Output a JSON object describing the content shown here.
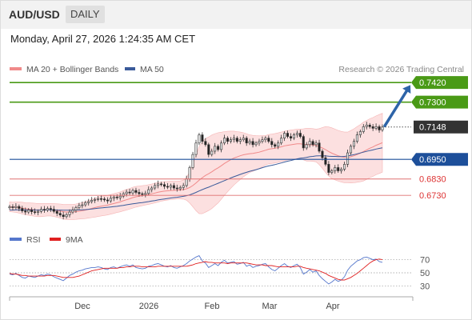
{
  "header": {
    "symbol": "AUD/USD",
    "timeframe": "DAILY"
  },
  "date_text": "Monday, April 27, 2026 1:24:35 AM CET",
  "legend": {
    "ma20": {
      "label": "MA 20 + Bollinger Bands",
      "color": "#f08a8a"
    },
    "ma50": {
      "label": "MA 50",
      "color": "#3a5a9a"
    },
    "copyright": "Research © 2026 Trading Central"
  },
  "rsi_legend": {
    "rsi": {
      "label": "RSI",
      "color": "#5577cc"
    },
    "ma9": {
      "label": "9MA",
      "color": "#e02020"
    }
  },
  "x_ticks": [
    "Dec",
    "2026",
    "Feb",
    "Mar",
    "Apr"
  ],
  "colors": {
    "resistance": "#4a9a16",
    "support": "#1d4f9a",
    "support_weak": "#e07070",
    "current": "#333333",
    "candle_up": "#e8e8e8",
    "candle_down": "#222222",
    "band_fill": "#fbd6d6",
    "arrow": "#2e64a8"
  },
  "chart_data": [
    {
      "type": "candlestick",
      "y_range": [
        0.6545,
        0.7455
      ],
      "levels": [
        {
          "label": "0.7420",
          "value": 0.742,
          "kind": "resistance"
        },
        {
          "label": "0.7300",
          "value": 0.73,
          "kind": "resistance"
        },
        {
          "label": "0.7148",
          "value": 0.7148,
          "kind": "current"
        },
        {
          "label": "0.6950",
          "value": 0.695,
          "kind": "support"
        },
        {
          "label": "0.6830",
          "value": 0.683,
          "kind": "support_weak"
        },
        {
          "label": "0.6730",
          "value": 0.673,
          "kind": "support_weak"
        }
      ],
      "arrow": {
        "from": 0.7155,
        "to": 0.7405
      },
      "close": [
        0.666,
        0.6655,
        0.6662,
        0.665,
        0.6635,
        0.6628,
        0.664,
        0.663,
        0.6625,
        0.6632,
        0.6645,
        0.664,
        0.665,
        0.6645,
        0.6632,
        0.662,
        0.661,
        0.66,
        0.6612,
        0.6628,
        0.664,
        0.6655,
        0.6668,
        0.6672,
        0.6685,
        0.6692,
        0.67,
        0.6705,
        0.671,
        0.6708,
        0.6702,
        0.6696,
        0.6712,
        0.672,
        0.6715,
        0.6725,
        0.674,
        0.675,
        0.6745,
        0.676,
        0.6748,
        0.674,
        0.6735,
        0.6742,
        0.6765,
        0.6775,
        0.679,
        0.68,
        0.6796,
        0.6785,
        0.678,
        0.679,
        0.6775,
        0.677,
        0.6778,
        0.679,
        0.683,
        0.69,
        0.698,
        0.705,
        0.71,
        0.706,
        0.704,
        0.698,
        0.7,
        0.703,
        0.701,
        0.705,
        0.708,
        0.706,
        0.707,
        0.708,
        0.706,
        0.707,
        0.708,
        0.705,
        0.706,
        0.704,
        0.705,
        0.706,
        0.707,
        0.708,
        0.706,
        0.704,
        0.703,
        0.705,
        0.708,
        0.711,
        0.709,
        0.708,
        0.71,
        0.711,
        0.709,
        0.702,
        0.704,
        0.706,
        0.704,
        0.705,
        0.7,
        0.696,
        0.692,
        0.687,
        0.688,
        0.69,
        0.688,
        0.689,
        0.692,
        0.699,
        0.703,
        0.706,
        0.71,
        0.712,
        0.715,
        0.716,
        0.715,
        0.714,
        0.715,
        0.713,
        0.7148
      ],
      "ma20": [
        0.666,
        0.6658,
        0.6658,
        0.6656,
        0.6652,
        0.6648,
        0.6646,
        0.6644,
        0.6642,
        0.664,
        0.664,
        0.6641,
        0.6642,
        0.6642,
        0.664,
        0.6637,
        0.6634,
        0.663,
        0.6628,
        0.6628,
        0.6628,
        0.663,
        0.6633,
        0.6636,
        0.664,
        0.6645,
        0.665,
        0.6655,
        0.666,
        0.6664,
        0.6667,
        0.667,
        0.6675,
        0.668,
        0.6685,
        0.669,
        0.6697,
        0.6703,
        0.6709,
        0.6716,
        0.6721,
        0.6725,
        0.6728,
        0.6731,
        0.6735,
        0.6739,
        0.6744,
        0.6749,
        0.6753,
        0.6756,
        0.6758,
        0.676,
        0.6761,
        0.6762,
        0.6763,
        0.6765,
        0.677,
        0.6778,
        0.679,
        0.6806,
        0.6823,
        0.6838,
        0.6852,
        0.6862,
        0.6874,
        0.6887,
        0.6898,
        0.6911,
        0.6925,
        0.6937,
        0.6948,
        0.6958,
        0.6965,
        0.6972,
        0.6978,
        0.6982,
        0.6985,
        0.6987,
        0.699,
        0.6994,
        0.7,
        0.7006,
        0.7012,
        0.7015,
        0.7018,
        0.7022,
        0.7027,
        0.7033,
        0.7036,
        0.7039,
        0.7042,
        0.7045,
        0.7045,
        0.7042,
        0.704,
        0.704,
        0.7038,
        0.7035,
        0.7028,
        0.702,
        0.701,
        0.6998,
        0.6988,
        0.698,
        0.6972,
        0.6966,
        0.6962,
        0.6962,
        0.6966,
        0.6972,
        0.698,
        0.6988,
        0.6998,
        0.7008,
        0.7018,
        0.7026,
        0.7036,
        0.7044,
        0.7052
      ],
      "ma50": [
        0.664,
        0.664,
        0.6641,
        0.6641,
        0.6641,
        0.6641,
        0.6641,
        0.6641,
        0.664,
        0.664,
        0.664,
        0.664,
        0.6641,
        0.6641,
        0.6641,
        0.664,
        0.664,
        0.6639,
        0.6639,
        0.6639,
        0.664,
        0.664,
        0.6641,
        0.6642,
        0.6643,
        0.6645,
        0.6647,
        0.6649,
        0.6651,
        0.6653,
        0.6655,
        0.6657,
        0.6659,
        0.6661,
        0.6663,
        0.6666,
        0.6669,
        0.6672,
        0.6675,
        0.6678,
        0.6681,
        0.6684,
        0.6686,
        0.6689,
        0.6692,
        0.6695,
        0.6698,
        0.6702,
        0.6705,
        0.6708,
        0.6711,
        0.6714,
        0.6716,
        0.6718,
        0.6721,
        0.6724,
        0.6728,
        0.6733,
        0.674,
        0.6748,
        0.6757,
        0.6765,
        0.6773,
        0.678,
        0.6788,
        0.6796,
        0.6804,
        0.6812,
        0.682,
        0.6828,
        0.6836,
        0.6844,
        0.6851,
        0.6858,
        0.6865,
        0.6871,
        0.6877,
        0.6882,
        0.6887,
        0.6893,
        0.6899,
        0.6905,
        0.691,
        0.6914,
        0.6918,
        0.6923,
        0.6928,
        0.6934,
        0.6939,
        0.6943,
        0.6948,
        0.6953,
        0.6957,
        0.6959,
        0.6962,
        0.6966,
        0.6968,
        0.6971,
        0.6972,
        0.6972,
        0.6971,
        0.6969,
        0.6968,
        0.6968,
        0.6967,
        0.6967,
        0.6968,
        0.6971,
        0.6975,
        0.6979,
        0.6984,
        0.6989,
        0.6994,
        0.6999,
        0.7004,
        0.7008,
        0.7013,
        0.7017,
        0.7021
      ],
      "bb_width": [
        0.003,
        0.003,
        0.0032,
        0.0034,
        0.0036,
        0.0037,
        0.0038,
        0.0039,
        0.004,
        0.004,
        0.004,
        0.0039,
        0.0038,
        0.0038,
        0.0039,
        0.0041,
        0.0043,
        0.0045,
        0.0046,
        0.0046,
        0.0046,
        0.0047,
        0.0048,
        0.005,
        0.0052,
        0.0054,
        0.0056,
        0.0058,
        0.0059,
        0.006,
        0.006,
        0.006,
        0.006,
        0.006,
        0.006,
        0.0061,
        0.0062,
        0.0063,
        0.0063,
        0.0064,
        0.0063,
        0.0062,
        0.0061,
        0.006,
        0.006,
        0.006,
        0.006,
        0.006,
        0.0059,
        0.0058,
        0.0057,
        0.0056,
        0.0055,
        0.0054,
        0.0055,
        0.0058,
        0.007,
        0.0095,
        0.013,
        0.017,
        0.0205,
        0.022,
        0.0225,
        0.0225,
        0.0225,
        0.022,
        0.0215,
        0.0205,
        0.0195,
        0.0185,
        0.0175,
        0.0165,
        0.0155,
        0.0145,
        0.0135,
        0.0125,
        0.0115,
        0.011,
        0.0105,
        0.01,
        0.0095,
        0.009,
        0.009,
        0.009,
        0.009,
        0.009,
        0.009,
        0.009,
        0.009,
        0.009,
        0.009,
        0.009,
        0.009,
        0.0095,
        0.01,
        0.01,
        0.01,
        0.01,
        0.011,
        0.0125,
        0.014,
        0.015,
        0.0155,
        0.0155,
        0.0155,
        0.0155,
        0.0155,
        0.0155,
        0.016,
        0.0165,
        0.017,
        0.0175,
        0.018,
        0.018,
        0.018,
        0.018,
        0.018,
        0.018,
        0.018
      ]
    },
    {
      "type": "line",
      "name": "RSI",
      "y_ticks": [
        70,
        50,
        30
      ],
      "y_range": [
        22,
        78
      ],
      "rsi": [
        48,
        47,
        49,
        46,
        43,
        42,
        45,
        44,
        43,
        45,
        47,
        46,
        48,
        47,
        44,
        42,
        40,
        38,
        42,
        46,
        48,
        51,
        53,
        54,
        56,
        57,
        58,
        58,
        59,
        58,
        56,
        55,
        58,
        59,
        57,
        59,
        61,
        62,
        60,
        62,
        58,
        57,
        56,
        57,
        60,
        61,
        63,
        64,
        62,
        60,
        59,
        61,
        58,
        57,
        59,
        61,
        64,
        68,
        71,
        74,
        76,
        68,
        65,
        58,
        61,
        64,
        61,
        66,
        69,
        65,
        66,
        67,
        63,
        64,
        66,
        60,
        62,
        58,
        60,
        61,
        63,
        64,
        59,
        55,
        53,
        57,
        61,
        64,
        60,
        58,
        61,
        63,
        58,
        48,
        51,
        55,
        51,
        53,
        46,
        41,
        37,
        33,
        36,
        40,
        37,
        39,
        44,
        54,
        60,
        64,
        68,
        70,
        73,
        74,
        72,
        70,
        71,
        67,
        66
      ],
      "ma9": [
        49,
        48,
        48,
        47,
        46,
        46,
        45,
        45,
        45,
        45,
        45,
        45,
        46,
        46,
        46,
        45,
        44,
        43,
        43,
        43,
        43,
        44,
        45,
        47,
        49,
        51,
        53,
        54,
        55,
        56,
        57,
        57,
        57,
        57,
        57,
        58,
        58,
        59,
        59,
        60,
        60,
        60,
        59,
        59,
        59,
        59,
        59,
        60,
        60,
        60,
        60,
        60,
        60,
        60,
        60,
        60,
        60,
        61,
        62,
        64,
        65,
        66,
        67,
        66,
        66,
        65,
        65,
        65,
        65,
        64,
        65,
        65,
        65,
        65,
        65,
        65,
        64,
        63,
        62,
        62,
        62,
        61,
        61,
        61,
        60,
        59,
        59,
        59,
        59,
        59,
        59,
        60,
        60,
        58,
        57,
        56,
        55,
        54,
        53,
        51,
        49,
        46,
        44,
        42,
        40,
        39,
        39,
        41,
        43,
        46,
        49,
        53,
        57,
        61,
        65,
        68,
        70,
        71,
        70
      ]
    }
  ]
}
